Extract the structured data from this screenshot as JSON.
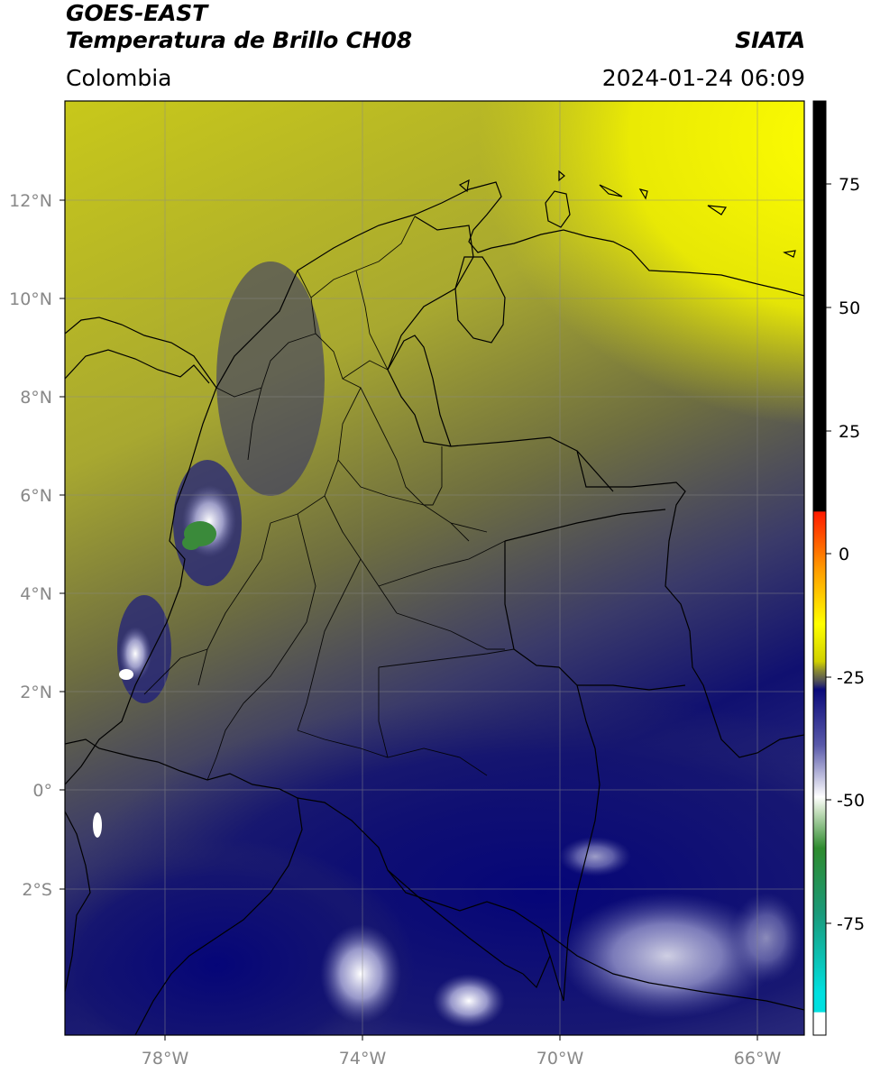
{
  "header": {
    "satellite": "GOES-EAST",
    "product": "Temperatura de Brillo CH08",
    "region": "Colombia",
    "agency": "SIATA",
    "datetime": "2024-01-24 06:09"
  },
  "map": {
    "lon_range": [
      -80,
      -65
    ],
    "lat_range": [
      -5,
      14
    ],
    "lon_ticks": [
      "78°W",
      "74°W",
      "70°W",
      "66°W"
    ],
    "lat_ticks": [
      "12°N",
      "10°N",
      "8°N",
      "6°N",
      "4°N",
      "2°N",
      "0°",
      "2°S"
    ],
    "gridlines": true
  },
  "colorbar": {
    "labels": [
      "75",
      "50",
      "25",
      "0",
      "-25",
      "-50",
      "-75"
    ],
    "colors": {
      "black": "#000000",
      "red": "#ff1a00",
      "orange": "#ff9900",
      "yellow": "#ffff00",
      "olive": "#6e6e33",
      "navy": "#0a0a7a",
      "white": "#ffffff",
      "green": "#2e8b2e",
      "cyan": "#00d2d2"
    }
  }
}
